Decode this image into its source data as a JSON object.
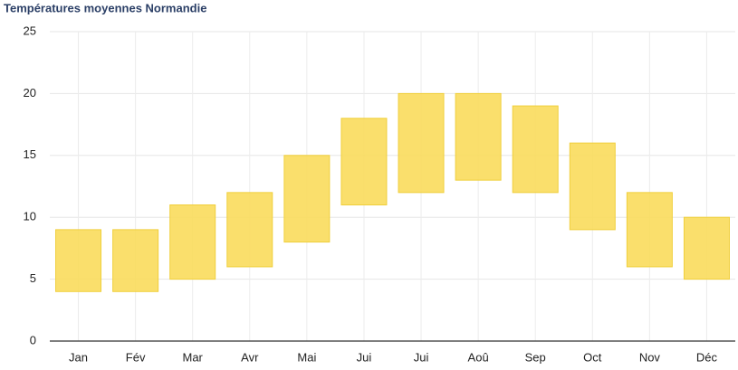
{
  "chart_data": {
    "type": "range_bar",
    "title": "Températures moyennes Normandie",
    "categories": [
      "Jan",
      "Fév",
      "Mar",
      "Avr",
      "Mai",
      "Jui",
      "Jui",
      "Aoû",
      "Sep",
      "Oct",
      "Nov",
      "Déc"
    ],
    "low": [
      4,
      4,
      5,
      6,
      8,
      11,
      12,
      13,
      12,
      9,
      6,
      5
    ],
    "high": [
      9,
      9,
      11,
      12,
      15,
      18,
      20,
      20,
      19,
      16,
      12,
      10
    ],
    "color": "#f9dc5c",
    "ylim": [
      0,
      25
    ],
    "yticks": [
      0,
      5,
      10,
      15,
      20,
      25
    ],
    "grid": true
  }
}
